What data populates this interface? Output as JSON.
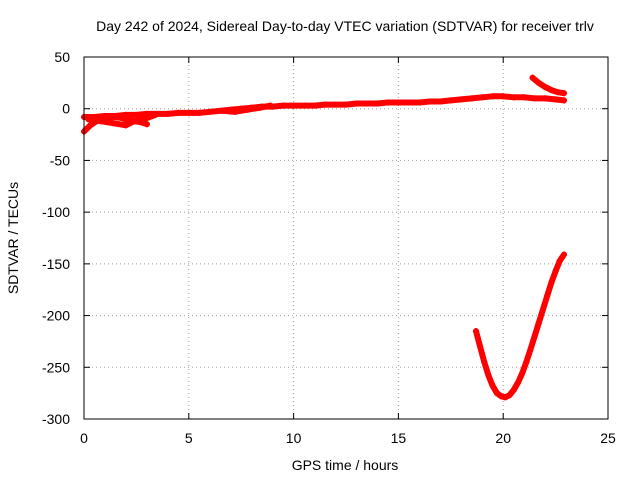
{
  "chart_data": {
    "type": "scatter",
    "title": "Day 242 of 2024, Sidereal Day-to-day VTEC variation (SDTVAR) for receiver trlv",
    "xlabel": "GPS time / hours",
    "ylabel": "SDTVAR / TECUs",
    "xlim": [
      0,
      25
    ],
    "ylim": [
      -300,
      50
    ],
    "x_ticks": [
      "0",
      "5",
      "10",
      "15",
      "20",
      "25"
    ],
    "y_ticks": [
      "50",
      "0",
      "-50",
      "-100",
      "-150",
      "-200",
      "-250",
      "-300"
    ],
    "grid": true,
    "legend": "none",
    "series_color": "#ff0000",
    "series": [
      {
        "x": [
          0.0,
          0.5,
          1.0,
          1.5,
          2.0,
          2.5,
          3.0,
          3.5,
          4.0,
          4.5,
          5.0,
          5.5,
          6.0,
          6.5,
          7.0,
          7.5,
          8.0,
          8.5,
          9.0,
          9.5,
          10.0,
          10.5,
          11.0,
          11.5,
          12.0,
          12.5,
          13.0,
          13.5,
          14.0,
          14.5,
          15.0,
          15.5,
          16.0,
          16.5,
          17.0,
          17.5,
          18.0,
          18.5,
          19.0,
          19.5,
          20.0,
          20.5,
          21.0,
          21.5,
          22.0,
          22.5,
          22.9
        ],
        "y": [
          -8,
          -8,
          -7,
          -7,
          -6,
          -6,
          -5,
          -5,
          -5,
          -4,
          -4,
          -4,
          -3,
          -2,
          -1,
          0,
          1,
          2,
          2,
          3,
          3,
          3,
          3,
          4,
          4,
          4,
          5,
          5,
          5,
          6,
          6,
          6,
          6,
          7,
          7,
          8,
          9,
          10,
          11,
          12,
          12,
          11,
          11,
          10,
          10,
          9,
          8
        ]
      },
      {
        "x": [
          0.0,
          0.3,
          0.6,
          0.9,
          1.2,
          1.5,
          1.8,
          2.1,
          2.4,
          2.7,
          3.0
        ],
        "y": [
          -22,
          -16,
          -12,
          -10,
          -8,
          -8,
          -9,
          -11,
          -12,
          -13,
          -15
        ]
      },
      {
        "x": [
          0.2,
          0.8,
          1.4,
          2.0,
          2.4,
          3.0,
          3.4
        ],
        "y": [
          -10,
          -12,
          -14,
          -16,
          -12,
          -9,
          -6
        ]
      },
      {
        "x": [
          6.6,
          7.2,
          7.8,
          8.4,
          8.9
        ],
        "y": [
          -2,
          -3,
          -1,
          1,
          3
        ]
      },
      {
        "x": [
          21.4,
          21.7,
          22.0,
          22.3,
          22.6,
          22.9
        ],
        "y": [
          30,
          25,
          21,
          18,
          16,
          15
        ]
      },
      {
        "x": [
          18.7,
          18.9,
          19.1,
          19.3,
          19.5,
          19.7,
          19.9,
          20.1,
          20.3,
          20.5,
          20.7,
          20.9,
          21.1,
          21.3,
          21.5,
          21.7,
          21.9,
          22.1,
          22.3,
          22.5,
          22.7,
          22.9
        ],
        "y": [
          -215,
          -230,
          -245,
          -258,
          -268,
          -275,
          -278,
          -279,
          -277,
          -272,
          -265,
          -256,
          -245,
          -233,
          -220,
          -207,
          -194,
          -181,
          -168,
          -157,
          -147,
          -141
        ]
      }
    ]
  }
}
